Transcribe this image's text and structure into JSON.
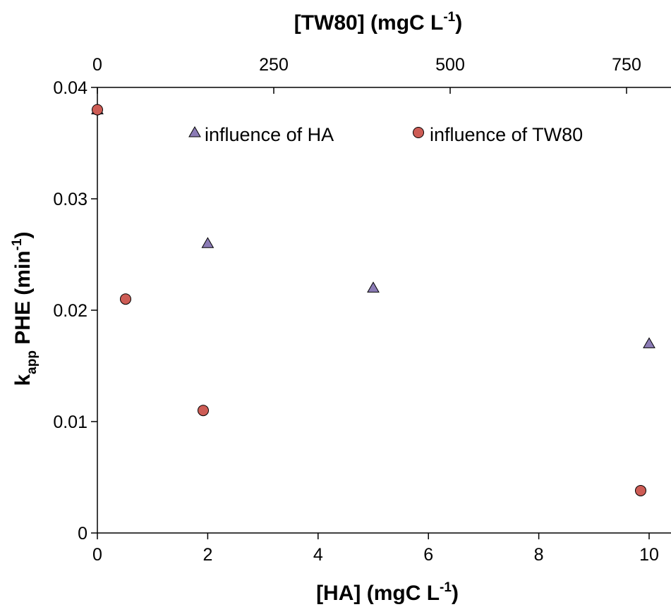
{
  "chart_data": {
    "type": "scatter",
    "title": "",
    "x_bottom": {
      "label_main": "[HA] (mgC L",
      "label_sup": "-1",
      "label_end": ")",
      "lim": [
        0,
        10
      ],
      "ticks": [
        0,
        2,
        4,
        6,
        8,
        10
      ],
      "tick_labels": [
        "0",
        "2",
        "4",
        "6",
        "8",
        "10"
      ]
    },
    "x_top": {
      "label_main": "[TW80] (mgC L",
      "label_sup": "-1",
      "label_end": ")",
      "lim": [
        0,
        775
      ],
      "ticks": [
        0,
        250,
        500,
        750
      ],
      "tick_labels": [
        "0",
        "250",
        "500",
        "750"
      ]
    },
    "y": {
      "label_k": "k",
      "label_sub": "app",
      "label_mid": " PHE (min",
      "label_sup": "-1",
      "label_end": ")",
      "lim": [
        0,
        0.04
      ],
      "ticks": [
        0,
        0.01,
        0.02,
        0.03,
        0.04
      ],
      "tick_labels": [
        "0",
        "0.01",
        "0.02",
        "0.03",
        "0.04"
      ]
    },
    "grid": false,
    "legend_position": "top",
    "series": [
      {
        "name": "influence of HA",
        "marker": "triangle",
        "color": "#8b7bb5",
        "x_axis": "bottom",
        "x": [
          0,
          2,
          5,
          10
        ],
        "y": [
          0.038,
          0.026,
          0.022,
          0.017
        ]
      },
      {
        "name": "influence of TW80",
        "marker": "circle",
        "color": "#cd5c55",
        "x_axis": "top",
        "x": [
          0,
          40,
          150,
          770
        ],
        "y": [
          0.038,
          0.021,
          0.011,
          0.0038
        ]
      }
    ]
  }
}
